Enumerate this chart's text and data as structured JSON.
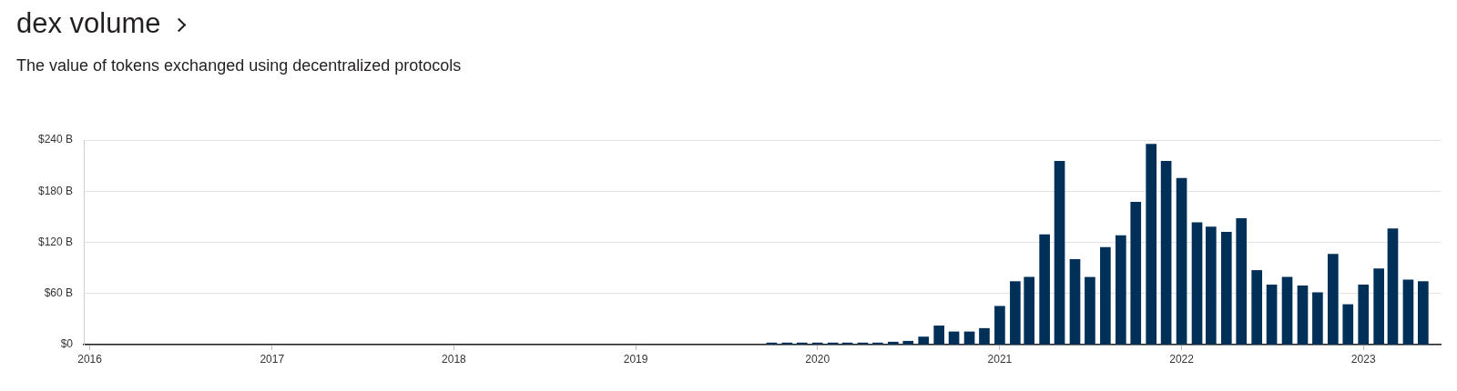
{
  "chart_data": {
    "type": "bar",
    "title": "dex volume",
    "subtitle": "The value of tokens exchanged using decentralized protocols",
    "x": [
      "2019-10",
      "2019-11",
      "2019-12",
      "2020-01",
      "2020-02",
      "2020-03",
      "2020-04",
      "2020-05",
      "2020-06",
      "2020-07",
      "2020-08",
      "2020-09",
      "2020-10",
      "2020-11",
      "2020-12",
      "2021-01",
      "2021-02",
      "2021-03",
      "2021-04",
      "2021-05",
      "2021-06",
      "2021-07",
      "2021-08",
      "2021-09",
      "2021-10",
      "2021-11",
      "2021-12",
      "2022-01",
      "2022-02",
      "2022-03",
      "2022-04",
      "2022-05",
      "2022-06",
      "2022-07",
      "2022-08",
      "2022-09",
      "2022-10",
      "2022-11",
      "2022-12",
      "2023-01",
      "2023-02",
      "2023-03",
      "2023-04",
      "2023-05"
    ],
    "values": [
      2,
      2,
      2,
      2,
      2,
      2,
      2,
      2,
      3,
      4,
      9,
      22,
      15,
      15,
      19,
      45,
      74,
      79,
      129,
      215,
      100,
      79,
      114,
      128,
      167,
      235,
      215,
      195,
      143,
      138,
      132,
      148,
      87,
      70,
      79,
      69,
      61,
      106,
      47,
      70,
      89,
      136,
      76,
      74
    ],
    "color": "#003057",
    "xlim": [
      "2015-12-20",
      "2023-06-05"
    ],
    "xticks": [
      "2016",
      "2017",
      "2018",
      "2019",
      "2020",
      "2021",
      "2022",
      "2023"
    ],
    "ylim": [
      0,
      240
    ],
    "yticks": [
      {
        "value": 0,
        "label": "$0"
      },
      {
        "value": 60,
        "label": "$60 B"
      },
      {
        "value": 120,
        "label": "$120 B"
      },
      {
        "value": 180,
        "label": "$180 B"
      },
      {
        "value": 240,
        "label": "$240 B"
      }
    ],
    "grid": "y",
    "legend": false
  }
}
